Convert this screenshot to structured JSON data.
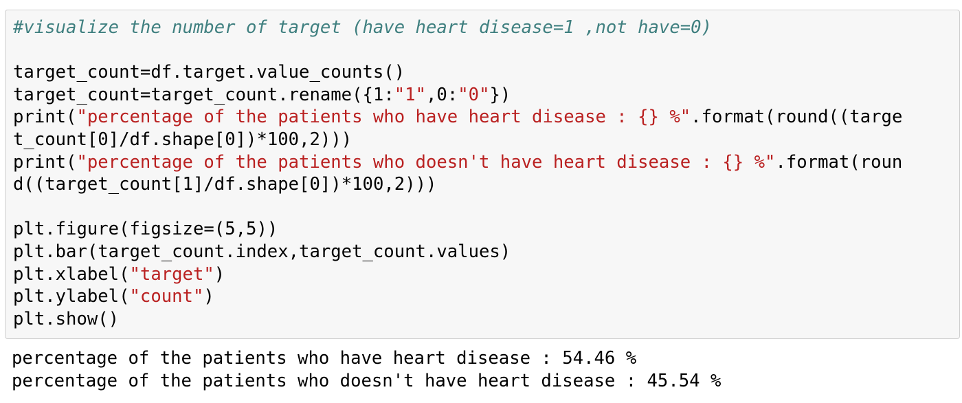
{
  "colors": {
    "cell_background": "#f7f7f7",
    "cell_border": "#cfcfcf",
    "comment": "#408080",
    "string": "#ba2121",
    "text": "#000000"
  },
  "cell": {
    "lines": [
      [
        {
          "t": "#visualize the number of target (have heart disease=1 ,not have=0)",
          "k": "comment"
        }
      ],
      [],
      [
        {
          "t": "target_count=df.target.value_counts()",
          "k": "plain"
        }
      ],
      [
        {
          "t": "target_count=target_count.rename({",
          "k": "plain"
        },
        {
          "t": "1",
          "k": "number"
        },
        {
          "t": ":",
          "k": "plain"
        },
        {
          "t": "\"1\"",
          "k": "string"
        },
        {
          "t": ",",
          "k": "plain"
        },
        {
          "t": "0",
          "k": "number"
        },
        {
          "t": ":",
          "k": "plain"
        },
        {
          "t": "\"0\"",
          "k": "string"
        },
        {
          "t": "})",
          "k": "plain"
        }
      ],
      [
        {
          "t": "print(",
          "k": "plain"
        },
        {
          "t": "\"percentage of the patients who have heart disease : {} %\"",
          "k": "string"
        },
        {
          "t": ".format(round((targe",
          "k": "plain"
        }
      ],
      [
        {
          "t": "t_count[",
          "k": "plain"
        },
        {
          "t": "0",
          "k": "number"
        },
        {
          "t": "]/df.shape[",
          "k": "plain"
        },
        {
          "t": "0",
          "k": "number"
        },
        {
          "t": "])*",
          "k": "plain"
        },
        {
          "t": "100",
          "k": "number"
        },
        {
          "t": ",",
          "k": "plain"
        },
        {
          "t": "2",
          "k": "number"
        },
        {
          "t": ")))",
          "k": "plain"
        }
      ],
      [
        {
          "t": "print(",
          "k": "plain"
        },
        {
          "t": "\"percentage of the patients who doesn't have heart disease : {} %\"",
          "k": "string"
        },
        {
          "t": ".format(roun",
          "k": "plain"
        }
      ],
      [
        {
          "t": "d((target_count[",
          "k": "plain"
        },
        {
          "t": "1",
          "k": "number"
        },
        {
          "t": "]/df.shape[",
          "k": "plain"
        },
        {
          "t": "0",
          "k": "number"
        },
        {
          "t": "])*",
          "k": "plain"
        },
        {
          "t": "100",
          "k": "number"
        },
        {
          "t": ",",
          "k": "plain"
        },
        {
          "t": "2",
          "k": "number"
        },
        {
          "t": ")))",
          "k": "plain"
        }
      ],
      [],
      [
        {
          "t": "plt.figure(figsize=(",
          "k": "plain"
        },
        {
          "t": "5",
          "k": "number"
        },
        {
          "t": ",",
          "k": "plain"
        },
        {
          "t": "5",
          "k": "number"
        },
        {
          "t": "))",
          "k": "plain"
        }
      ],
      [
        {
          "t": "plt.bar(target_count.index,target_count.values)",
          "k": "plain"
        }
      ],
      [
        {
          "t": "plt.xlabel(",
          "k": "plain"
        },
        {
          "t": "\"target\"",
          "k": "string"
        },
        {
          "t": ")",
          "k": "plain"
        }
      ],
      [
        {
          "t": "plt.ylabel(",
          "k": "plain"
        },
        {
          "t": "\"count\"",
          "k": "string"
        },
        {
          "t": ")",
          "k": "plain"
        }
      ],
      [
        {
          "t": "plt.show()",
          "k": "plain"
        }
      ]
    ]
  },
  "output": {
    "lines": [
      "percentage of the patients who have heart disease : 54.46 %",
      "percentage of the patients who doesn't have heart disease : 45.54 %"
    ]
  }
}
